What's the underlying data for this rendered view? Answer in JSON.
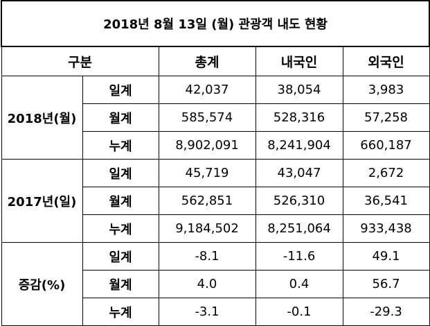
{
  "title": "2018년 8월 13일 (월) 관광객 내도 현황",
  "header": [
    "구분",
    "총계",
    "내국인",
    "외국인"
  ],
  "groups": [
    {
      "label": "2018년(월)",
      "rows": [
        {
          "label": "일계",
          "values": [
            "42,037",
            "38,054",
            "3,983"
          ]
        },
        {
          "label": "월계",
          "values": [
            "585,574",
            "528,316",
            "57,258"
          ]
        },
        {
          "label": "누계",
          "values": [
            "8,902,091",
            "8,241,904",
            "660,187"
          ]
        }
      ]
    },
    {
      "label": "2017년(일)",
      "rows": [
        {
          "label": "일계",
          "values": [
            "45,719",
            "43,047",
            "2,672"
          ]
        },
        {
          "label": "월계",
          "values": [
            "562,851",
            "526,310",
            "36,541"
          ]
        },
        {
          "label": "누계",
          "values": [
            "9,184,502",
            "8,251,064",
            "933,438"
          ]
        }
      ]
    },
    {
      "label": "증감(%)",
      "rows": [
        {
          "label": "일계",
          "values": [
            "-8.1",
            "-11.6",
            "49.1"
          ]
        },
        {
          "label": "월계",
          "values": [
            "4.0",
            "0.4",
            "56.7"
          ]
        },
        {
          "label": "누계",
          "values": [
            "-3.1",
            "-0.1",
            "-29.3"
          ]
        }
      ]
    }
  ]
}
